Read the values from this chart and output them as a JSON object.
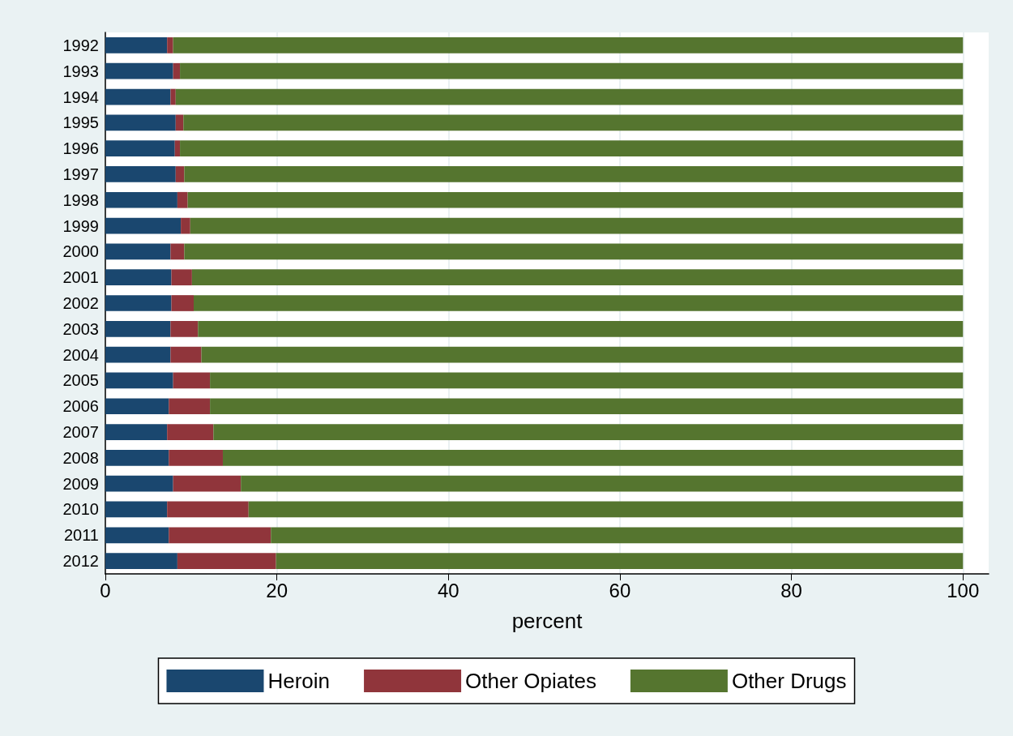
{
  "chart_data": {
    "type": "bar",
    "orientation": "horizontal",
    "stacked": true,
    "xlabel": "percent",
    "categories": [
      "1992",
      "1993",
      "1994",
      "1995",
      "1996",
      "1997",
      "1998",
      "1999",
      "2000",
      "2001",
      "2002",
      "2003",
      "2004",
      "2005",
      "2006",
      "2007",
      "2008",
      "2009",
      "2010",
      "2011",
      "2012"
    ],
    "series": [
      {
        "name": "Heroin",
        "color": "#1a476f",
        "values": [
          7.2,
          7.9,
          7.6,
          8.2,
          8.1,
          8.2,
          8.4,
          8.8,
          7.6,
          7.7,
          7.7,
          7.6,
          7.6,
          7.9,
          7.4,
          7.2,
          7.4,
          7.9,
          7.2,
          7.4,
          8.4
        ]
      },
      {
        "name": "Other Opiates",
        "color": "#90353b",
        "values": [
          0.7,
          0.8,
          0.6,
          0.9,
          0.6,
          1.0,
          1.2,
          1.1,
          1.6,
          2.4,
          2.6,
          3.2,
          3.6,
          4.3,
          4.8,
          5.4,
          6.3,
          7.9,
          9.5,
          11.9,
          11.5
        ]
      },
      {
        "name": "Other Drugs",
        "color": "#55752f",
        "values": [
          92.1,
          91.3,
          91.8,
          90.9,
          91.3,
          90.8,
          90.4,
          90.1,
          90.8,
          89.9,
          89.7,
          89.2,
          88.8,
          87.8,
          87.8,
          87.4,
          86.3,
          84.2,
          83.3,
          80.7,
          80.1
        ]
      }
    ],
    "xlim": [
      0,
      103
    ],
    "xticks": [
      0,
      20,
      40,
      60,
      80,
      100
    ],
    "grid": "x",
    "legend": "bottom"
  }
}
